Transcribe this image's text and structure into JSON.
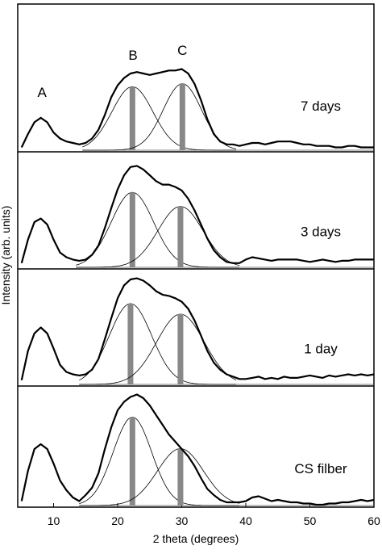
{
  "chart_data": {
    "type": "line",
    "y_label": "Intensity (arb. units)",
    "x_label": "2 theta (degrees)",
    "xlim": [
      4.4,
      60
    ],
    "xticks": [
      10,
      20,
      30,
      40,
      50,
      60
    ],
    "ylim": [
      0,
      1
    ],
    "line_color": "#000000",
    "fit_color": "#000000",
    "bar_color": "#888888",
    "annotations": [
      {
        "text": "A",
        "x": 8.2
      },
      {
        "text": "B",
        "x": 22.4
      },
      {
        "text": "C",
        "x": 30.1
      }
    ],
    "x": [
      5,
      6,
      7,
      8,
      9,
      10,
      11,
      12,
      13,
      14,
      15,
      16,
      17,
      18,
      19,
      20,
      21,
      22,
      23,
      24,
      25,
      26,
      27,
      28,
      29,
      30,
      31,
      32,
      33,
      34,
      35,
      36,
      37,
      38,
      39,
      40,
      41,
      42,
      43,
      44,
      45,
      46,
      47,
      48,
      49,
      50,
      51,
      52,
      53,
      54,
      55,
      56,
      57,
      58,
      59,
      60
    ],
    "panels": [
      {
        "label": "7 days",
        "fit_range": [
          14.5,
          38.5
        ],
        "fits": [
          {
            "center": 22.3,
            "height": 0.43,
            "sigma": 3.2
          },
          {
            "center": 30.1,
            "height": 0.45,
            "sigma": 3.0
          }
        ],
        "values": [
          0.03,
          0.12,
          0.2,
          0.23,
          0.2,
          0.13,
          0.09,
          0.07,
          0.06,
          0.05,
          0.06,
          0.09,
          0.15,
          0.25,
          0.37,
          0.45,
          0.5,
          0.53,
          0.54,
          0.53,
          0.52,
          0.53,
          0.54,
          0.55,
          0.55,
          0.56,
          0.53,
          0.46,
          0.35,
          0.22,
          0.12,
          0.07,
          0.05,
          0.05,
          0.04,
          0.05,
          0.06,
          0.06,
          0.05,
          0.06,
          0.07,
          0.07,
          0.07,
          0.06,
          0.05,
          0.05,
          0.04,
          0.04,
          0.04,
          0.03,
          0.03,
          0.04,
          0.04,
          0.03,
          0.03,
          0.03
        ]
      },
      {
        "label": "3 days",
        "fit_range": [
          13.5,
          39
        ],
        "fits": [
          {
            "center": 22.3,
            "height": 0.64,
            "sigma": 3.3
          },
          {
            "center": 29.8,
            "height": 0.52,
            "sigma": 3.5
          }
        ],
        "values": [
          0.05,
          0.25,
          0.4,
          0.43,
          0.38,
          0.25,
          0.14,
          0.1,
          0.08,
          0.07,
          0.08,
          0.12,
          0.2,
          0.35,
          0.52,
          0.68,
          0.8,
          0.87,
          0.88,
          0.85,
          0.8,
          0.75,
          0.72,
          0.72,
          0.7,
          0.67,
          0.6,
          0.5,
          0.38,
          0.26,
          0.16,
          0.1,
          0.06,
          0.05,
          0.05,
          0.08,
          0.1,
          0.09,
          0.08,
          0.07,
          0.08,
          0.08,
          0.08,
          0.08,
          0.07,
          0.06,
          0.07,
          0.08,
          0.07,
          0.06,
          0.07,
          0.07,
          0.08,
          0.08,
          0.08,
          0.08
        ]
      },
      {
        "label": "1 day",
        "fit_range": [
          14,
          38.5
        ],
        "fits": [
          {
            "center": 22,
            "height": 0.69,
            "sigma": 3.3
          },
          {
            "center": 29.8,
            "height": 0.6,
            "sigma": 3.7
          }
        ],
        "values": [
          0.05,
          0.3,
          0.45,
          0.5,
          0.45,
          0.32,
          0.18,
          0.12,
          0.1,
          0.09,
          0.1,
          0.14,
          0.23,
          0.4,
          0.58,
          0.75,
          0.86,
          0.91,
          0.92,
          0.9,
          0.86,
          0.81,
          0.78,
          0.77,
          0.75,
          0.72,
          0.66,
          0.56,
          0.43,
          0.3,
          0.2,
          0.14,
          0.1,
          0.08,
          0.06,
          0.06,
          0.07,
          0.08,
          0.06,
          0.07,
          0.06,
          0.08,
          0.07,
          0.07,
          0.08,
          0.09,
          0.08,
          0.07,
          0.09,
          0.08,
          0.09,
          0.1,
          0.09,
          0.1,
          0.09,
          0.1
        ]
      },
      {
        "label": "CS filber",
        "fit_range": [
          14,
          39
        ],
        "fits": [
          {
            "center": 22.3,
            "height": 0.73,
            "sigma": 3.0
          },
          {
            "center": 29.8,
            "height": 0.47,
            "sigma": 3.6
          }
        ],
        "values": [
          0.05,
          0.3,
          0.48,
          0.52,
          0.48,
          0.36,
          0.22,
          0.14,
          0.08,
          0.05,
          0.1,
          0.16,
          0.28,
          0.48,
          0.66,
          0.8,
          0.87,
          0.91,
          0.93,
          0.9,
          0.84,
          0.76,
          0.68,
          0.6,
          0.54,
          0.48,
          0.42,
          0.34,
          0.24,
          0.15,
          0.1,
          0.06,
          0.04,
          0.04,
          0.04,
          0.05,
          0.08,
          0.09,
          0.07,
          0.05,
          0.06,
          0.05,
          0.04,
          0.04,
          0.03,
          0.03,
          0.02,
          0.02,
          0.03,
          0.03,
          0.04,
          0.04,
          0.05,
          0.06,
          0.05,
          0.06
        ]
      }
    ]
  }
}
